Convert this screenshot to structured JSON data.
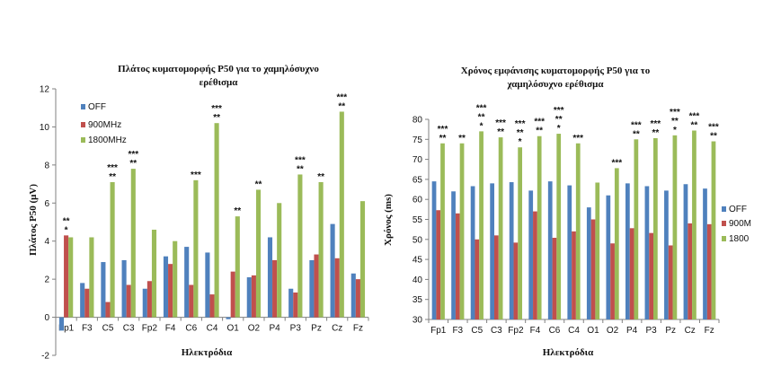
{
  "colors": {
    "off": "#4F81BD",
    "m900": "#C0504D",
    "m1800": "#9BBB59",
    "axis": "#808080",
    "grid": "#d9d9d9"
  },
  "chart_data": [
    {
      "type": "bar",
      "title_lines": [
        "Πλάτος κυματομορφής P50 για το χαμηλόσυχνο",
        "ερέθισμα"
      ],
      "xlabel": "Ηλεκτρόδια",
      "ylabel": "Πλάτος P50 (μV)",
      "ylim": [
        -2,
        12
      ],
      "yticks": [
        -2,
        0,
        2,
        4,
        6,
        8,
        10,
        12
      ],
      "grid": false,
      "legend_position": "top-left",
      "categories": [
        "Fp1",
        "F3",
        "C5",
        "C3",
        "Fp2",
        "F4",
        "C6",
        "C4",
        "O1",
        "O2",
        "P4",
        "P3",
        "Pz",
        "Cz",
        "Fz"
      ],
      "series": [
        {
          "name": "OFF",
          "values": [
            -0.7,
            1.8,
            2.9,
            3.0,
            1.5,
            3.2,
            3.7,
            3.4,
            -0.1,
            2.1,
            4.2,
            1.5,
            3.0,
            4.9,
            2.3
          ]
        },
        {
          "name": "900MHz",
          "values": [
            4.3,
            1.5,
            0.8,
            1.7,
            1.9,
            2.8,
            1.7,
            1.2,
            2.4,
            2.2,
            3.0,
            1.3,
            3.3,
            3.1,
            2.0
          ]
        },
        {
          "name": "1800MHz",
          "values": [
            4.2,
            4.2,
            7.1,
            7.8,
            4.6,
            4.0,
            7.2,
            10.2,
            5.3,
            6.7,
            6.0,
            7.5,
            7.1,
            10.8,
            6.1
          ]
        }
      ],
      "annotations": [
        {
          "category": "Fp1",
          "series": "900MHz",
          "lines": [
            "**",
            "*"
          ]
        },
        {
          "category": "C5",
          "series": "1800MHz",
          "lines": [
            "***",
            "**"
          ]
        },
        {
          "category": "C3",
          "series": "1800MHz",
          "lines": [
            "***",
            "**"
          ]
        },
        {
          "category": "C6",
          "series": "1800MHz",
          "lines": [
            "***"
          ]
        },
        {
          "category": "C4",
          "series": "1800MHz",
          "lines": [
            "***",
            "**"
          ]
        },
        {
          "category": "O1",
          "series": "1800MHz",
          "lines": [
            "**"
          ]
        },
        {
          "category": "O2",
          "series": "1800MHz",
          "lines": [
            "**"
          ]
        },
        {
          "category": "P3",
          "series": "1800MHz",
          "lines": [
            "***",
            "**"
          ]
        },
        {
          "category": "Pz",
          "series": "1800MHz",
          "lines": [
            "**"
          ]
        },
        {
          "category": "Cz",
          "series": "1800MHz",
          "lines": [
            "***",
            "**"
          ]
        }
      ]
    },
    {
      "type": "bar",
      "title_lines": [
        "Χρόνος εμφάνισης κυματομορφής P50 για το",
        "χαμηλόσυχνο ερέθισμα"
      ],
      "xlabel": "Ηλεκτρόδια",
      "ylabel": "Χρόνος (ms)",
      "ylim": [
        30,
        80
      ],
      "yticks": [
        30,
        35,
        40,
        45,
        50,
        55,
        60,
        65,
        70,
        75,
        80
      ],
      "grid": false,
      "legend_position": "right",
      "legend_labels": [
        "OFF",
        "900M",
        "1800"
      ],
      "categories": [
        "Fp1",
        "F3",
        "C5",
        "C3",
        "Fp2",
        "F4",
        "C6",
        "C4",
        "O1",
        "O2",
        "P4",
        "P3",
        "Pz",
        "Cz",
        "Fz"
      ],
      "series": [
        {
          "name": "OFF",
          "values": [
            64.5,
            62.0,
            63.3,
            64.0,
            64.3,
            62.2,
            64.5,
            63.5,
            58.0,
            61.0,
            64.0,
            63.3,
            62.2,
            63.8,
            62.7
          ]
        },
        {
          "name": "900M",
          "values": [
            57.3,
            56.5,
            50.0,
            51.0,
            49.2,
            57.0,
            50.4,
            52.0,
            55.0,
            49.0,
            52.8,
            51.6,
            48.5,
            54.0,
            53.8
          ]
        },
        {
          "name": "1800",
          "values": [
            74.0,
            74.0,
            77.0,
            75.5,
            73.0,
            75.8,
            76.4,
            74.0,
            64.2,
            67.8,
            75.0,
            75.3,
            76.0,
            77.2,
            74.5
          ]
        }
      ],
      "annotations": [
        {
          "category": "Fp1",
          "series": "1800",
          "lines": [
            "***",
            "**"
          ]
        },
        {
          "category": "F3",
          "series": "1800",
          "lines": [
            "**"
          ]
        },
        {
          "category": "C5",
          "series": "1800",
          "lines": [
            "***",
            "**",
            "*"
          ]
        },
        {
          "category": "C3",
          "series": "1800",
          "lines": [
            "***",
            "**"
          ]
        },
        {
          "category": "Fp2",
          "series": "1800",
          "lines": [
            "***",
            "**",
            "*"
          ]
        },
        {
          "category": "F4",
          "series": "1800",
          "lines": [
            "***",
            "**"
          ]
        },
        {
          "category": "C6",
          "series": "1800",
          "lines": [
            "***",
            "**",
            "*"
          ]
        },
        {
          "category": "C4",
          "series": "1800",
          "lines": [
            "***"
          ]
        },
        {
          "category": "O2",
          "series": "1800",
          "lines": [
            "***"
          ]
        },
        {
          "category": "P4",
          "series": "1800",
          "lines": [
            "***",
            "**"
          ]
        },
        {
          "category": "P3",
          "series": "1800",
          "lines": [
            "***",
            "**"
          ]
        },
        {
          "category": "Pz",
          "series": "1800",
          "lines": [
            "***",
            "**",
            "*"
          ]
        },
        {
          "category": "Cz",
          "series": "1800",
          "lines": [
            "***",
            "**"
          ]
        },
        {
          "category": "Fz",
          "series": "1800",
          "lines": [
            "***",
            "**"
          ]
        }
      ]
    }
  ]
}
